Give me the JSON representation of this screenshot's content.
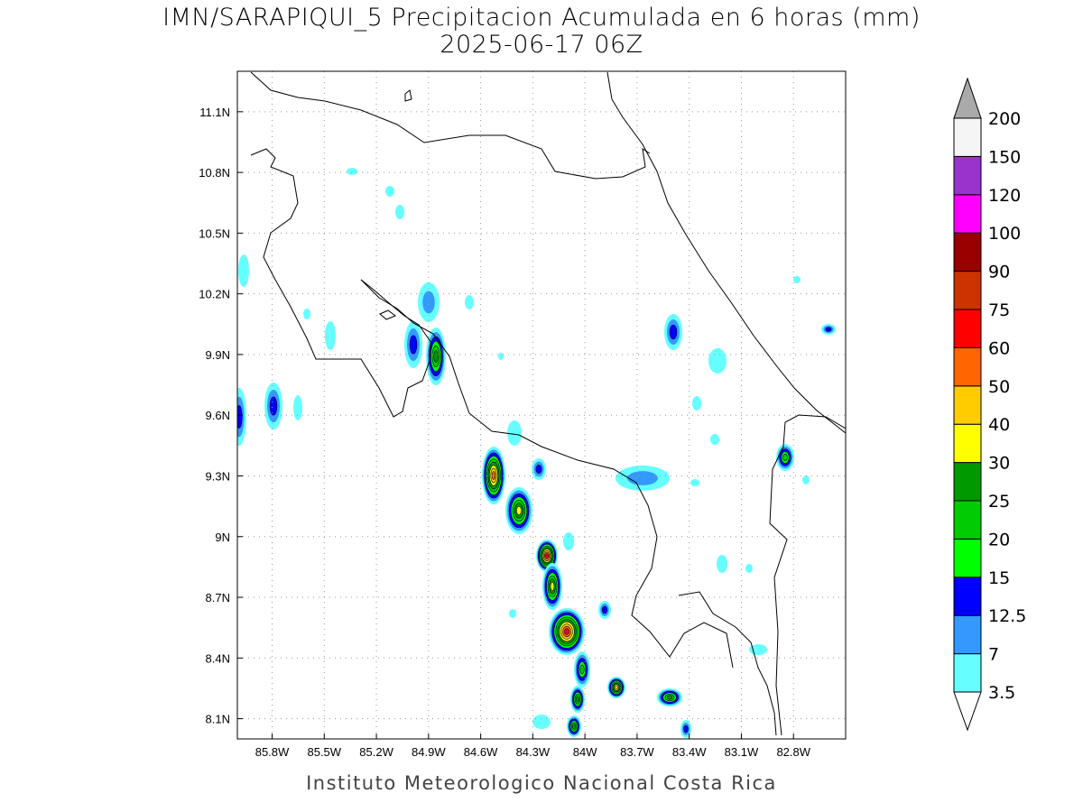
{
  "title": {
    "line1": "IMN/SARAPIQUI_5 Precipitacion Acumulada en 6 horas (mm)",
    "line2": "2025-06-17 06Z"
  },
  "credit": "Instituto Meteorologico Nacional Costa Rica",
  "map": {
    "lon_range": [
      -86.0,
      -82.5
    ],
    "lat_range": [
      8.0,
      11.3
    ],
    "grid": "dotted",
    "lon_ticks": [
      "85.8W",
      "85.5W",
      "85.2W",
      "84.9W",
      "84.6W",
      "84.3W",
      "84W",
      "83.7W",
      "83.4W",
      "83.1W",
      "82.8W"
    ],
    "lon_values": [
      -85.8,
      -85.5,
      -85.2,
      -84.9,
      -84.6,
      -84.3,
      -84.0,
      -83.7,
      -83.4,
      -83.1,
      -82.8
    ],
    "lat_ticks": [
      "11.1N",
      "10.8N",
      "10.5N",
      "10.2N",
      "9.9N",
      "9.6N",
      "9.3N",
      "9N",
      "8.7N",
      "8.4N",
      "8.1N"
    ],
    "lat_values": [
      11.1,
      10.8,
      10.5,
      10.2,
      9.9,
      9.6,
      9.3,
      9.0,
      8.7,
      8.4,
      8.1
    ]
  },
  "colorbar": {
    "labels": [
      "3.5",
      "7",
      "12.5",
      "15",
      "20",
      "25",
      "30",
      "40",
      "50",
      "60",
      "75",
      "90",
      "100",
      "120",
      "150",
      "200"
    ],
    "colors": [
      "#66ffff",
      "#3399ff",
      "#0000ff",
      "#00ff00",
      "#00cc00",
      "#009900",
      "#ffff00",
      "#ffcc00",
      "#ff6600",
      "#ff0000",
      "#cc3300",
      "#990000",
      "#ff00ff",
      "#9933cc",
      "#f5f5f5"
    ],
    "below_color": "#ffffff",
    "above_color": "#aaaaaa"
  }
}
